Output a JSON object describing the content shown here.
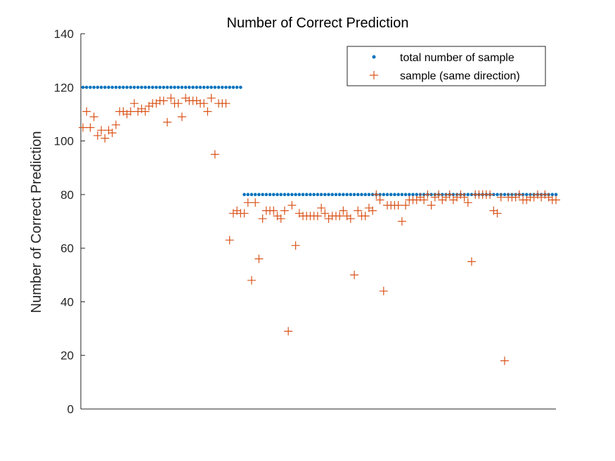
{
  "chart_data": {
    "type": "scatter",
    "title": "Number of Correct Prediction",
    "xlabel": "",
    "ylabel": "Number of Correct Prediction",
    "xlim": [
      1,
      130
    ],
    "ylim": [
      0,
      140
    ],
    "yticks": [
      0,
      20,
      40,
      60,
      80,
      100,
      120,
      140
    ],
    "xticks_visible": false,
    "grid": false,
    "legend_position": "top-right",
    "series": [
      {
        "name": "total number of sample",
        "marker": "dot",
        "color": "#0072BD",
        "x": [
          1,
          2,
          3,
          4,
          5,
          6,
          7,
          8,
          9,
          10,
          11,
          12,
          13,
          14,
          15,
          16,
          17,
          18,
          19,
          20,
          21,
          22,
          23,
          24,
          25,
          26,
          27,
          28,
          29,
          30,
          31,
          32,
          33,
          34,
          35,
          36,
          37,
          38,
          39,
          40,
          41,
          42,
          43,
          44,
          45,
          46,
          47,
          48,
          49,
          50,
          51,
          52,
          53,
          54,
          55,
          56,
          57,
          58,
          59,
          60,
          61,
          62,
          63,
          64,
          65,
          66,
          67,
          68,
          69,
          70,
          71,
          72,
          73,
          74,
          75,
          76,
          77,
          78,
          79,
          80,
          81,
          82,
          83,
          84,
          85,
          86,
          87,
          88,
          89,
          90,
          91,
          92,
          93,
          94,
          95,
          96,
          97,
          98,
          99,
          100,
          101,
          102,
          103,
          104,
          105,
          106,
          107,
          108,
          109,
          110,
          111,
          112,
          113,
          114,
          115,
          116,
          117,
          118,
          119,
          120,
          121,
          122,
          123,
          124,
          125,
          126,
          127,
          128,
          129,
          130
        ],
        "y": [
          120,
          120,
          120,
          120,
          120,
          120,
          120,
          120,
          120,
          120,
          120,
          120,
          120,
          120,
          120,
          120,
          120,
          120,
          120,
          120,
          120,
          120,
          120,
          120,
          120,
          120,
          120,
          120,
          120,
          120,
          120,
          120,
          120,
          120,
          120,
          120,
          120,
          120,
          120,
          120,
          120,
          120,
          120,
          120,
          80,
          80,
          80,
          80,
          80,
          80,
          80,
          80,
          80,
          80,
          80,
          80,
          80,
          80,
          80,
          80,
          80,
          80,
          80,
          80,
          80,
          80,
          80,
          80,
          80,
          80,
          80,
          80,
          80,
          80,
          80,
          80,
          80,
          80,
          80,
          80,
          80,
          80,
          80,
          80,
          80,
          80,
          80,
          80,
          80,
          80,
          80,
          80,
          80,
          80,
          80,
          80,
          80,
          80,
          80,
          80,
          80,
          80,
          80,
          80,
          80,
          80,
          80,
          80,
          80,
          80,
          80,
          80,
          80,
          80,
          80,
          80,
          80,
          80,
          80,
          80,
          80,
          80,
          80,
          80,
          80,
          80,
          80,
          80,
          80,
          80
        ]
      },
      {
        "name": "sample (same direction)",
        "marker": "plus",
        "color": "#D95319",
        "x": [
          1,
          2,
          3,
          4,
          5,
          6,
          7,
          8,
          9,
          10,
          11,
          12,
          13,
          14,
          15,
          16,
          17,
          18,
          19,
          20,
          21,
          22,
          23,
          24,
          25,
          26,
          27,
          28,
          29,
          30,
          31,
          32,
          33,
          34,
          35,
          36,
          37,
          38,
          39,
          40,
          41,
          42,
          43,
          44,
          45,
          46,
          47,
          48,
          49,
          50,
          51,
          52,
          53,
          54,
          55,
          56,
          57,
          58,
          59,
          60,
          61,
          62,
          63,
          64,
          65,
          66,
          67,
          68,
          69,
          70,
          71,
          72,
          73,
          74,
          75,
          76,
          77,
          78,
          79,
          80,
          81,
          82,
          83,
          84,
          85,
          86,
          87,
          88,
          89,
          90,
          91,
          92,
          93,
          94,
          95,
          96,
          97,
          98,
          99,
          100,
          101,
          102,
          103,
          104,
          105,
          106,
          107,
          108,
          109,
          110,
          111,
          112,
          113,
          114,
          115,
          116,
          117,
          118,
          119,
          120,
          121,
          122,
          123,
          124,
          125,
          126,
          127,
          128,
          129,
          130
        ],
        "y": [
          105,
          111,
          105,
          109,
          102,
          104,
          101,
          104,
          103,
          106,
          111,
          111,
          110,
          111,
          114,
          111,
          112,
          111,
          113,
          114,
          114,
          115,
          115,
          107,
          116,
          114,
          114,
          109,
          116,
          115,
          115,
          115,
          114,
          114,
          111,
          116,
          95,
          114,
          114,
          114,
          63,
          73,
          74,
          73,
          73,
          77,
          48,
          77,
          56,
          71,
          74,
          74,
          74,
          72,
          71,
          74,
          29,
          76,
          61,
          73,
          72,
          72,
          72,
          72,
          72,
          75,
          73,
          71,
          72,
          72,
          72,
          74,
          72,
          71,
          50,
          74,
          72,
          72,
          75,
          74,
          80,
          78,
          44,
          76,
          76,
          76,
          76,
          70,
          76,
          78,
          78,
          78,
          79,
          78,
          80,
          76,
          79,
          80,
          78,
          79,
          80,
          78,
          79,
          80,
          79,
          77,
          55,
          80,
          80,
          80,
          80,
          80,
          74,
          73,
          79,
          18,
          79,
          79,
          79,
          80,
          78,
          78,
          79,
          79,
          80,
          79,
          80,
          79,
          78,
          78
        ]
      }
    ]
  }
}
